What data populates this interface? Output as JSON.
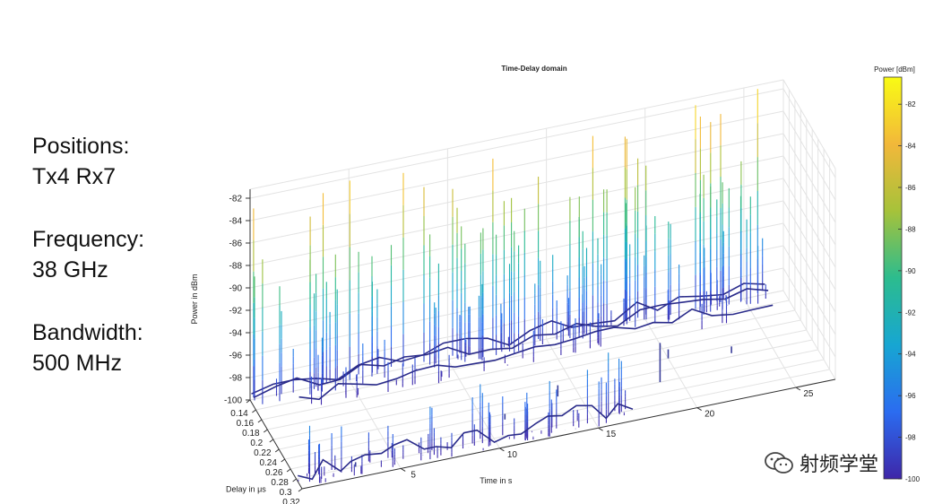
{
  "params": {
    "positions_label": "Positions:",
    "positions_value": "Tx4 Rx7",
    "frequency_label": "Frequency:",
    "frequency_value": "38 GHz",
    "bandwidth_label": "Bandwidth:",
    "bandwidth_value": "500 MHz"
  },
  "watermark": {
    "text": "射频学堂",
    "icon": "wechat-icon"
  },
  "chart_data": {
    "type": "surface3d",
    "title": "Time-Delay domain",
    "xlabel": "Delay in μs",
    "ylabel": "Time in s",
    "zlabel": "Power in dBm",
    "colorbar_label": "Power [dBm]",
    "colormap": [
      "#3e26a8",
      "#2b6cf0",
      "#17a6d2",
      "#2cbc8e",
      "#a6c23a",
      "#f2b83a",
      "#f9fb14"
    ],
    "xlim": [
      0.14,
      0.32
    ],
    "ylim": [
      0,
      27
    ],
    "zlim": [
      -100,
      -81
    ],
    "x_ticks": [
      0.14,
      0.16,
      0.18,
      0.2,
      0.22,
      0.24,
      0.26,
      0.28,
      0.3,
      0.32
    ],
    "x_tick_labels": [
      "0.14",
      "0.16",
      "0.18",
      "0.2",
      "0.22",
      "0.24",
      "0.26",
      "0.28",
      "0.3",
      "0.32"
    ],
    "y_ticks": [
      5,
      10,
      15,
      20,
      25
    ],
    "y_tick_labels": [
      "5",
      "10",
      "15",
      "20",
      "25"
    ],
    "z_ticks": [
      -100,
      -98,
      -96,
      -94,
      -92,
      -90,
      -88,
      -86,
      -84,
      -82
    ],
    "z_tick_labels": [
      "-100",
      "-98",
      "-96",
      "-94",
      "-92",
      "-90",
      "-88",
      "-86",
      "-84",
      "-82"
    ],
    "colorbar_ticks": [
      -100,
      -98,
      -96,
      -94,
      -92,
      -90,
      -88,
      -86,
      -84,
      -82
    ],
    "colorbar_tick_labels": [
      "-100",
      "-98",
      "-96",
      "-94",
      "-92",
      "-90",
      "-88",
      "-86",
      "-84",
      "-82"
    ],
    "grid": true,
    "clusters": [
      {
        "x_range": [
          0.142,
          0.152
        ],
        "y_range": [
          0,
          26
        ],
        "peak": -81.2,
        "floor": -99.5,
        "lines": 60
      },
      {
        "x_range": [
          0.152,
          0.165
        ],
        "y_range": [
          0,
          26
        ],
        "peak": -86.5,
        "floor": -99.5,
        "lines": 70
      },
      {
        "x_range": [
          0.165,
          0.18
        ],
        "y_range": [
          2,
          26
        ],
        "peak": -96.8,
        "floor": -100,
        "lines": 30
      },
      {
        "x_range": [
          0.295,
          0.318
        ],
        "y_range": [
          0,
          17
        ],
        "peak": -94.5,
        "floor": -100,
        "lines": 90
      }
    ],
    "spikes": [
      {
        "x": 0.26,
        "y": 19,
        "z": -96.5
      },
      {
        "x": 0.22,
        "y": 20,
        "z": -99.2
      },
      {
        "x": 0.234,
        "y": 23,
        "z": -99.4
      },
      {
        "x": 0.27,
        "y": 11,
        "z": -99.5
      },
      {
        "x": 0.248,
        "y": 14,
        "z": -99.0
      },
      {
        "x": 0.3,
        "y": 3,
        "z": -99.6
      }
    ]
  }
}
